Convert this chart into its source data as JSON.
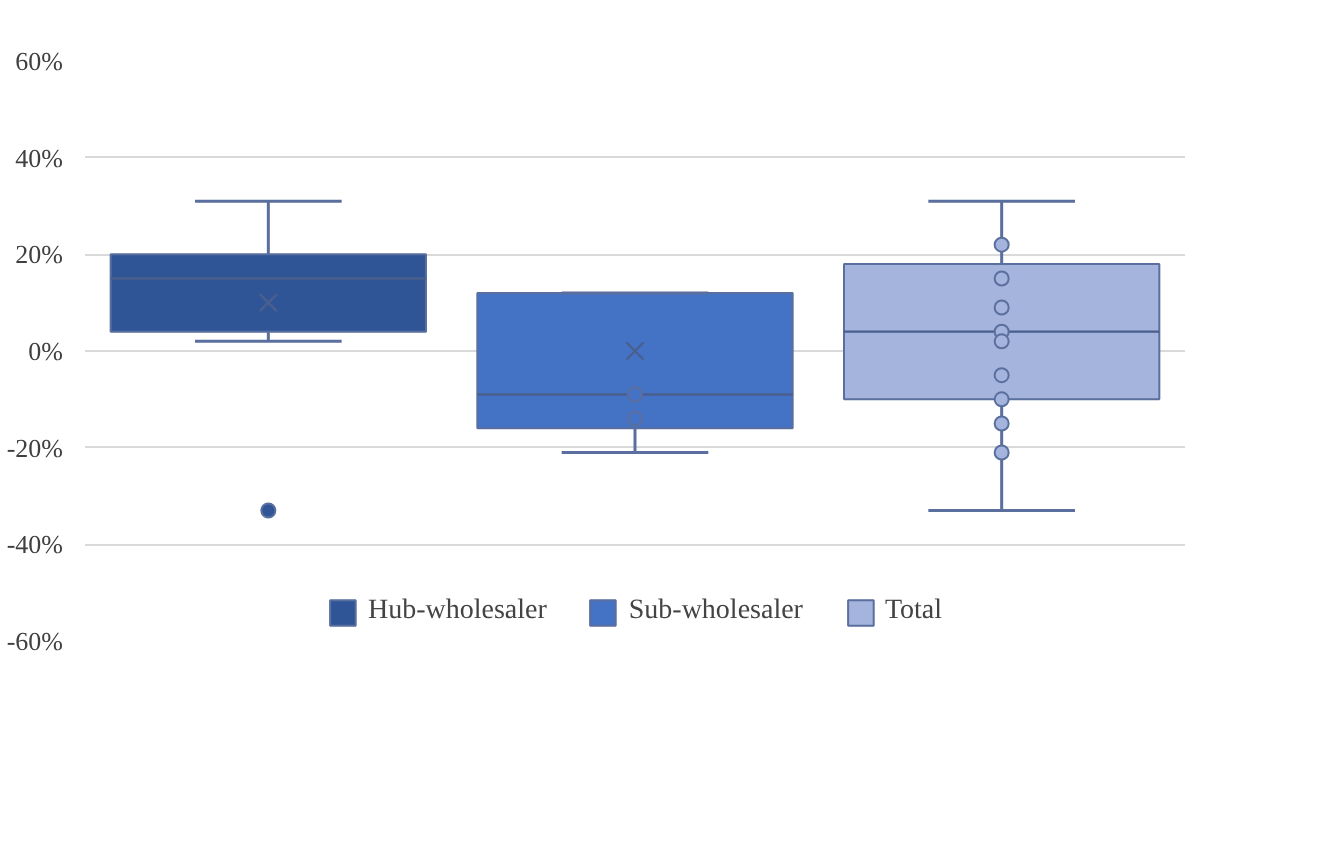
{
  "chart_data": {
    "type": "box",
    "categories": [
      null
    ],
    "series": [
      {
        "name": "Hub-wholesaler",
        "color": "#2f5597",
        "boxes": [
          {
            "low": 2,
            "q1": 4,
            "median": 15,
            "q3": 20,
            "high": 31,
            "mean": 10,
            "outliers": [
              -33
            ]
          }
        ]
      },
      {
        "name": "Sub-wholesaler",
        "color": "#4472c4",
        "boxes": [
          {
            "low": -21,
            "q1": -16,
            "median": -9,
            "q3": 12,
            "high": 12,
            "mean": 0,
            "outliers": [
              -9,
              -14
            ]
          }
        ]
      },
      {
        "name": "Total",
        "color": "#a5b4dc",
        "boxes": [
          {
            "low": -33,
            "q1": -10,
            "median": 4,
            "q3": 18,
            "high": 31,
            "outliers": [
              22,
              15,
              9,
              4,
              2,
              -5,
              -10,
              -15,
              -21
            ]
          }
        ]
      }
    ],
    "ylim": [
      -60,
      60
    ],
    "yticks": [
      {
        "value": -60,
        "label": "-60%"
      },
      {
        "value": -40,
        "label": "-40%"
      },
      {
        "value": -20,
        "label": "-20%"
      },
      {
        "value": 0,
        "label": "0%"
      },
      {
        "value": 20,
        "label": "20%"
      },
      {
        "value": 40,
        "label": "40%"
      },
      {
        "value": 60,
        "label": "60%"
      }
    ],
    "grid": "y",
    "legend": "bottom",
    "tick_labels": "y"
  }
}
